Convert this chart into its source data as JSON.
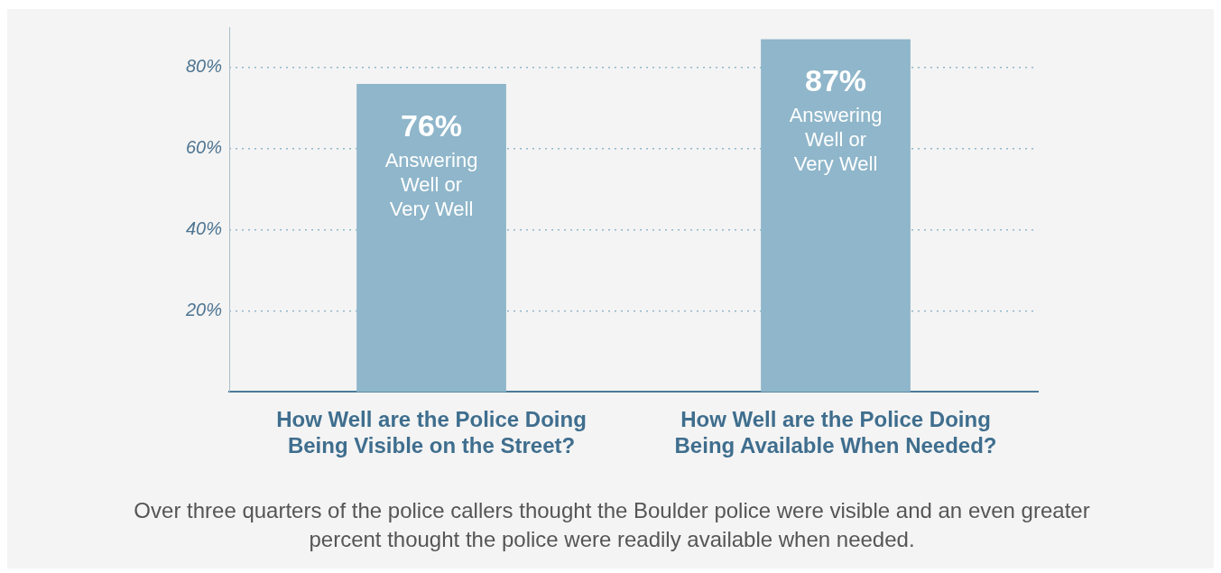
{
  "chart_data": {
    "type": "bar",
    "categories": [
      "How Well are the Police Doing Being Visible on the Street?",
      "How Well are the Police Doing Being Available When Needed?"
    ],
    "values": [
      76,
      87
    ],
    "color": "#8fb6ca",
    "value_labels": [
      "76%",
      "87%"
    ],
    "ylim": [
      0,
      90
    ],
    "yticks": [
      {
        "value": 20,
        "label": "20%"
      },
      {
        "value": 40,
        "label": "40%"
      },
      {
        "value": 60,
        "label": "60%"
      },
      {
        "value": 80,
        "label": "80%"
      }
    ],
    "grid": "y",
    "legend": false,
    "annotations": [
      "Answering Well or Very Well",
      "Answering Well or Very Well",
      "Over three quarters of the police callers thought the Boulder police were visible and an even greater percent thought the police were readily available when needed."
    ]
  }
}
